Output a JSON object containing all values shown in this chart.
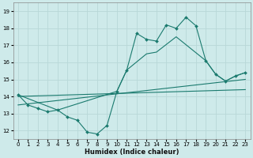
{
  "xlabel": "Humidex (Indice chaleur)",
  "bg_color": "#ceeaea",
  "line_color": "#1a7a6e",
  "grid_color": "#b8d8d8",
  "xlim": [
    -0.5,
    23.5
  ],
  "ylim": [
    11.5,
    19.5
  ],
  "yticks": [
    12,
    13,
    14,
    15,
    16,
    17,
    18,
    19
  ],
  "xticks": [
    0,
    1,
    2,
    3,
    4,
    5,
    6,
    7,
    8,
    9,
    10,
    11,
    12,
    13,
    14,
    15,
    16,
    17,
    18,
    19,
    20,
    21,
    22,
    23
  ],
  "series1_x": [
    0,
    1,
    2,
    3,
    4,
    5,
    6,
    7,
    8,
    9,
    10,
    11,
    12,
    13,
    14,
    15,
    16,
    17,
    18,
    19,
    20,
    21,
    22,
    23
  ],
  "series1_y": [
    14.1,
    13.5,
    13.3,
    13.1,
    13.2,
    12.8,
    12.6,
    11.9,
    11.8,
    12.3,
    14.3,
    15.55,
    17.7,
    17.35,
    17.25,
    18.2,
    18.0,
    18.65,
    18.15,
    16.1,
    15.3,
    14.9,
    15.2,
    15.4
  ],
  "series2_x": [
    0,
    4,
    10,
    11,
    13,
    14,
    16,
    19,
    20,
    21,
    22,
    23
  ],
  "series2_y": [
    14.1,
    13.2,
    14.3,
    15.55,
    16.5,
    16.6,
    17.5,
    16.1,
    15.3,
    14.9,
    15.2,
    15.4
  ],
  "series3_x": [
    0,
    23
  ],
  "series3_y": [
    14.0,
    14.4
  ],
  "series4_x": [
    0,
    23
  ],
  "series4_y": [
    13.5,
    15.0
  ]
}
